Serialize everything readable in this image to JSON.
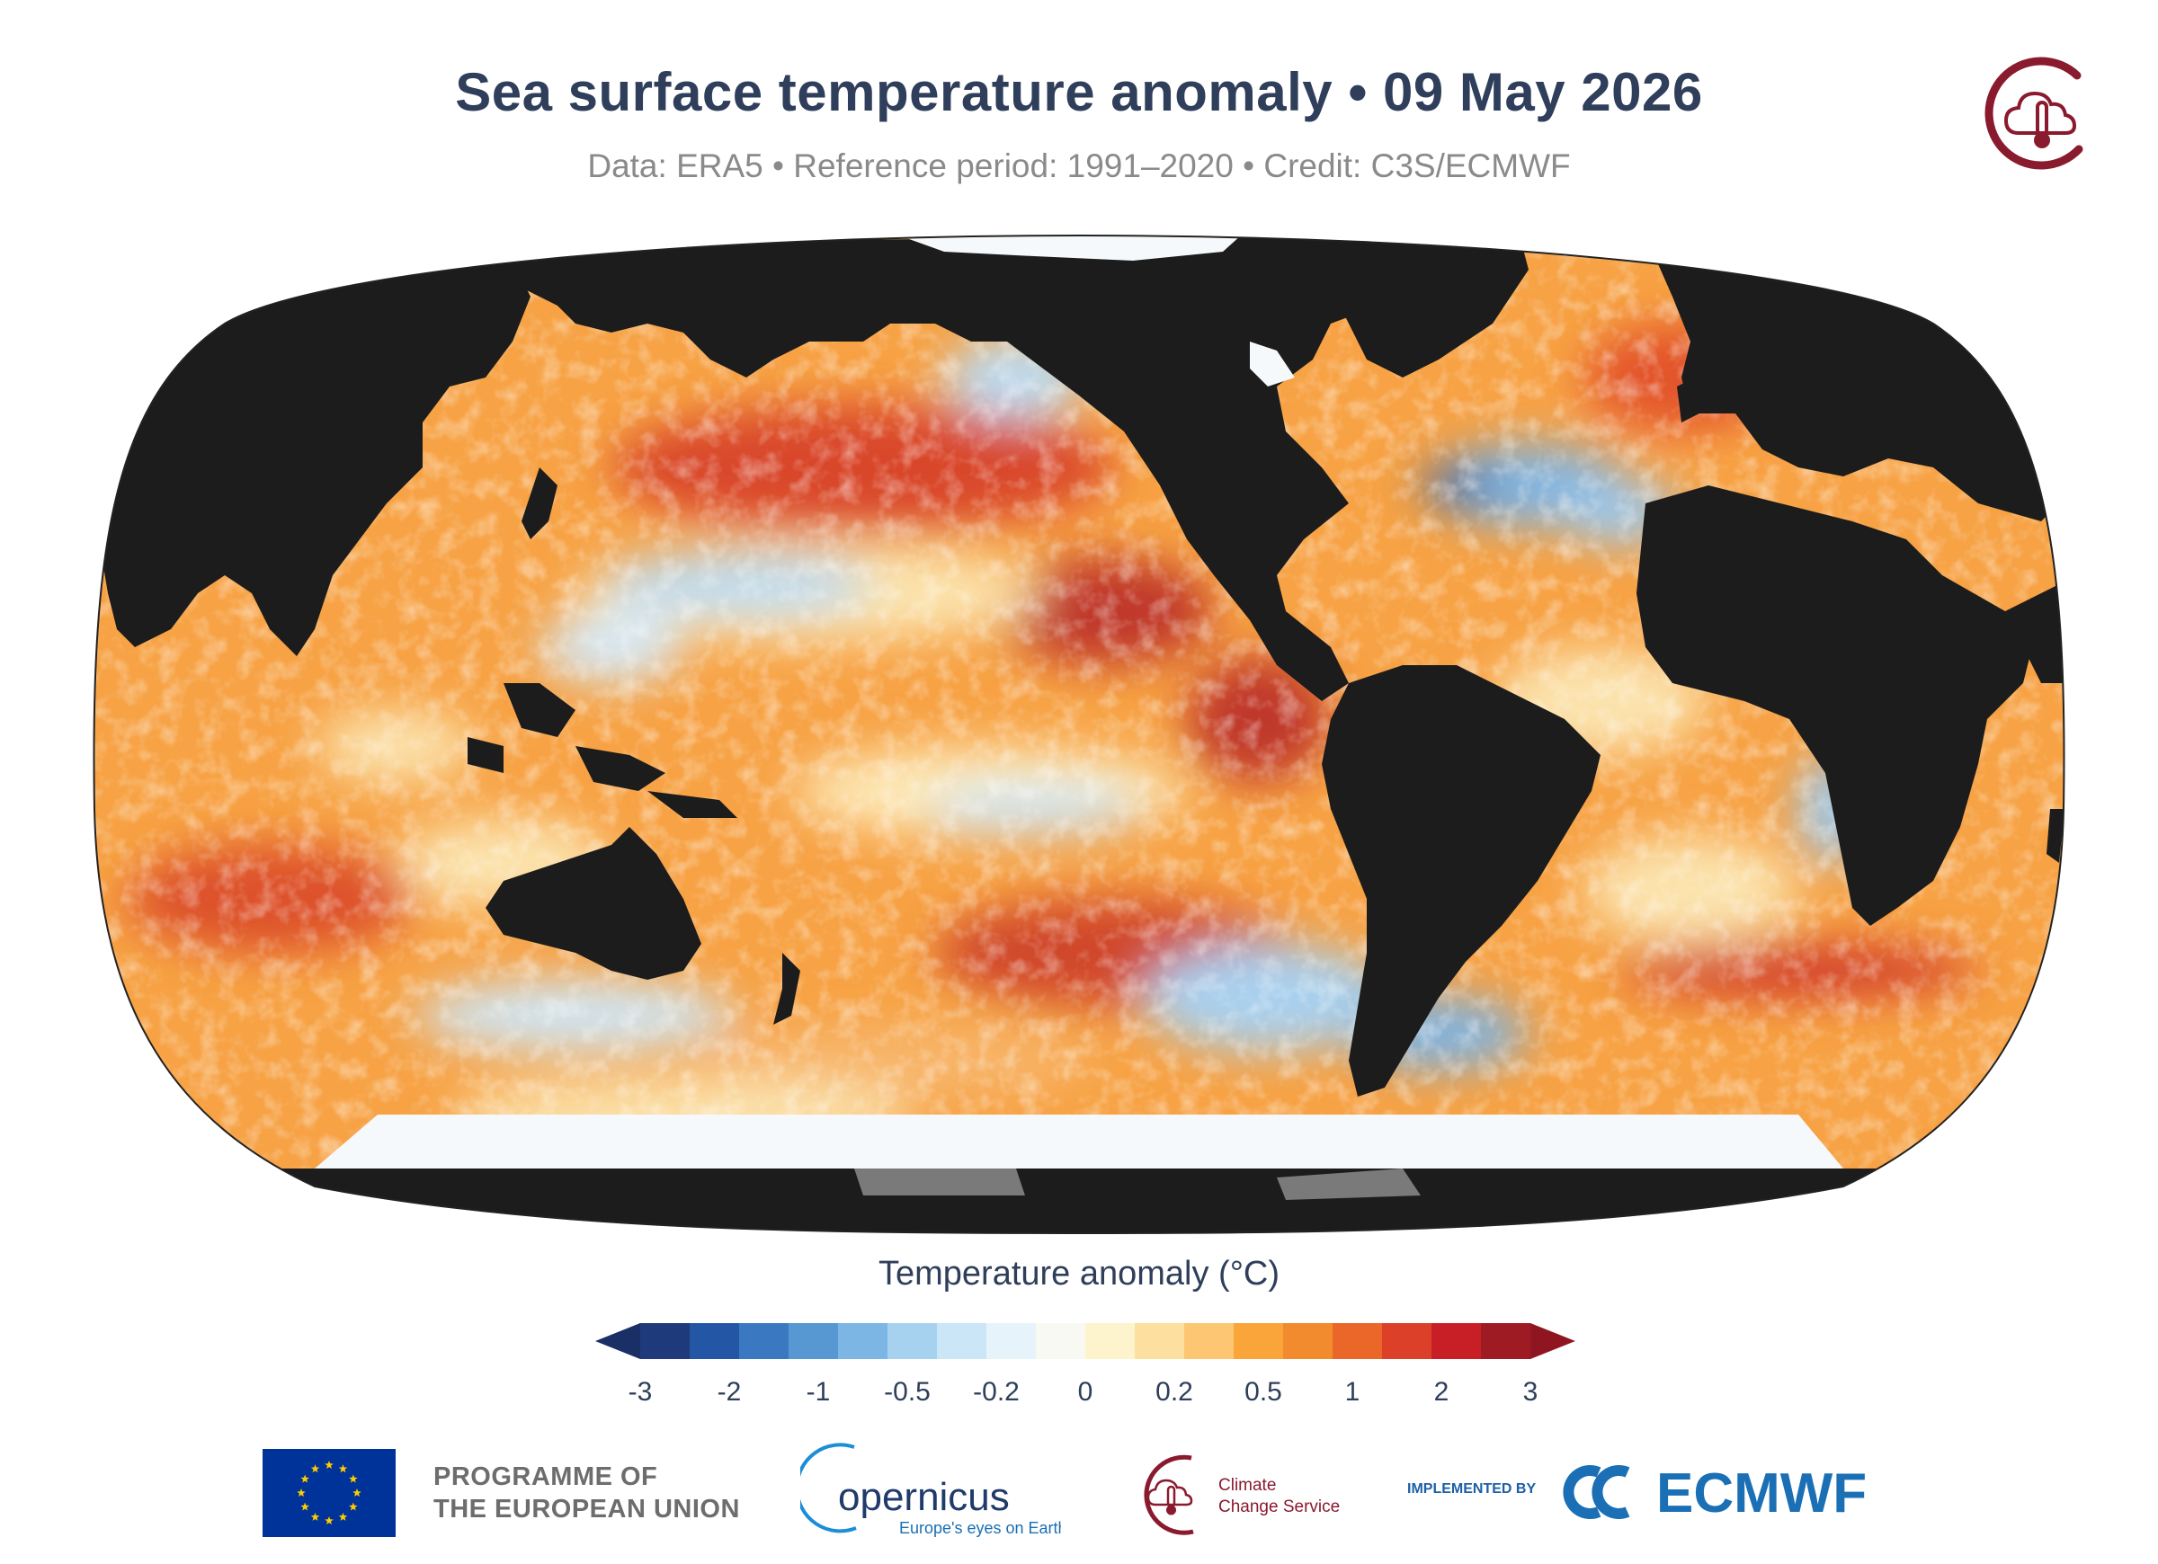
{
  "title": "Sea surface temperature anomaly • 09 May 2026",
  "subtitle": "Data: ERA5 • Reference period: 1991–2020 • Credit: C3S/ECMWF",
  "colorbar": {
    "title": "Temperature anomaly (°C)",
    "tick_labels": [
      "-3",
      "-2",
      "-1",
      "-0.5",
      "-0.2",
      "0",
      "0.2",
      "0.5",
      "1",
      "2",
      "3"
    ],
    "colors": [
      "#1f3a7a",
      "#2456a6",
      "#3a79c2",
      "#5798d3",
      "#7cb6e4",
      "#a6d2f0",
      "#cbe6f6",
      "#e6f3fa",
      "#f9f9f4",
      "#fdf3cc",
      "#fde0a0",
      "#fcc672",
      "#f9a53a",
      "#f28a2e",
      "#ea6629",
      "#dc4028",
      "#c81f26",
      "#9e1b24"
    ],
    "extend_low_color": "#1a2f66",
    "extend_high_color": "#8f1620"
  },
  "footer": {
    "eu_label_line1": "PROGRAMME OF",
    "eu_label_line2": "THE EUROPEAN UNION",
    "copernicus_name": "opernicus",
    "copernicus_tagline": "Europe's eyes on Earth",
    "c3s_line1": "Climate",
    "c3s_line2": "Change Service",
    "implemented_by": "IMPLEMENTED BY",
    "ecmwf": "ECMWF"
  },
  "map": {
    "projection": "Robinson",
    "land_color": "#1c1c1c",
    "sea_ice_color": "#f6f9fb",
    "antarctic_ice_shelf_color": "#7a7a7a"
  }
}
